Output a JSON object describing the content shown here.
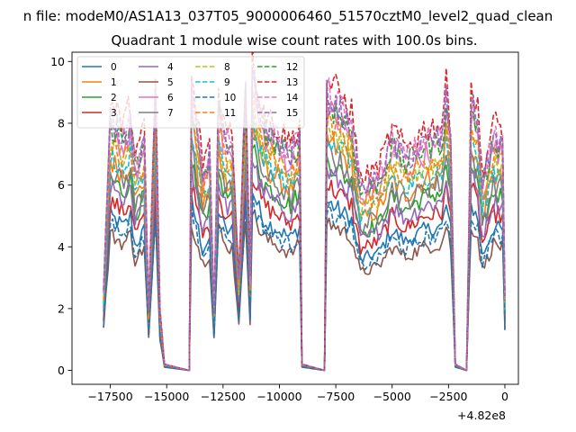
{
  "figure": {
    "suptitle": "n file: modeM0/AS1A13_037T05_9000006460_51570cztM0_level2_quad_clean",
    "offset_label": "+4.82e8"
  },
  "chart_data": {
    "type": "line",
    "title": "Quadrant 1 module wise count rates with 100.0s bins.",
    "xlabel": "",
    "ylabel": "",
    "x_offset": 482000000,
    "xlim": [
      -19200,
      600
    ],
    "ylim": [
      -0.45,
      10.3
    ],
    "xticks": [
      -17500,
      -15000,
      -12500,
      -10000,
      -7500,
      -5000,
      -2500,
      0
    ],
    "xtick_labels": [
      "−17500",
      "−15000",
      "−12500",
      "−10000",
      "−7500",
      "−5000",
      "−2500",
      "0"
    ],
    "yticks": [
      0,
      2,
      4,
      6,
      8,
      10
    ],
    "ytick_labels": [
      "0",
      "2",
      "4",
      "6",
      "8",
      "10"
    ],
    "grid": false,
    "legend": {
      "position": "top-left",
      "ncol": 4
    },
    "x_step": 100,
    "envelope_points": [
      [
        -17800,
        1.3
      ],
      [
        -17500,
        4.2
      ],
      [
        -16900,
        3.9
      ],
      [
        -16600,
        4.2
      ],
      [
        -16400,
        3.4
      ],
      [
        -16000,
        3.8
      ],
      [
        -15800,
        1.0
      ],
      [
        -15500,
        4.6
      ],
      [
        -15300,
        1.0
      ],
      [
        -15100,
        0.1
      ],
      [
        -14000,
        0.0
      ],
      [
        -13900,
        4.6
      ],
      [
        -13400,
        3.3
      ],
      [
        -13100,
        3.6
      ],
      [
        -12900,
        1.0
      ],
      [
        -12700,
        4.4
      ],
      [
        -12400,
        3.8
      ],
      [
        -12100,
        3.8
      ],
      [
        -11800,
        1.5
      ],
      [
        -11500,
        4.7
      ],
      [
        -11300,
        1.5
      ],
      [
        -11200,
        4.9
      ],
      [
        -10800,
        4.2
      ],
      [
        -10500,
        4.0
      ],
      [
        -9500,
        3.6
      ],
      [
        -9100,
        3.9
      ],
      [
        -9000,
        0.1
      ],
      [
        -8000,
        0.0
      ],
      [
        -7900,
        4.6
      ],
      [
        -6800,
        4.1
      ],
      [
        -6400,
        3.0
      ],
      [
        -5600,
        3.2
      ],
      [
        -5000,
        3.8
      ],
      [
        -4400,
        3.5
      ],
      [
        -3600,
        3.8
      ],
      [
        -2800,
        3.9
      ],
      [
        -2600,
        4.5
      ],
      [
        -2400,
        3.8
      ],
      [
        -2200,
        0.1
      ],
      [
        -1700,
        0.0
      ],
      [
        -1500,
        4.5
      ],
      [
        -1200,
        4.1
      ],
      [
        -1000,
        3.1
      ],
      [
        -500,
        3.9
      ],
      [
        -100,
        3.8
      ],
      [
        0,
        1.2
      ]
    ],
    "series": [
      {
        "name": "0",
        "scale": 1.19,
        "color": "#1f77b4",
        "dashed": false
      },
      {
        "name": "1",
        "scale": 1.62,
        "color": "#ff7f0e",
        "dashed": false
      },
      {
        "name": "2",
        "scale": 1.48,
        "color": "#2ca02c",
        "dashed": false
      },
      {
        "name": "3",
        "scale": 1.31,
        "color": "#d62728",
        "dashed": false
      },
      {
        "name": "4",
        "scale": 1.4,
        "color": "#9467bd",
        "dashed": false
      },
      {
        "name": "5",
        "scale": 1.05,
        "color": "#8c564b",
        "dashed": false
      },
      {
        "name": "6",
        "scale": 1.84,
        "color": "#e377c2",
        "dashed": false
      },
      {
        "name": "7",
        "scale": 1.55,
        "color": "#7f7f7f",
        "dashed": false
      },
      {
        "name": "8",
        "scale": 1.73,
        "color": "#bcbd22",
        "dashed": true
      },
      {
        "name": "9",
        "scale": 1.66,
        "color": "#17becf",
        "dashed": true
      },
      {
        "name": "10",
        "scale": 1.12,
        "color": "#1f77b4",
        "dashed": true
      },
      {
        "name": "11",
        "scale": 1.77,
        "color": "#ff7f0e",
        "dashed": true
      },
      {
        "name": "12",
        "scale": 1.9,
        "color": "#2ca02c",
        "dashed": true
      },
      {
        "name": "13",
        "scale": 2.05,
        "color": "#d62728",
        "dashed": true
      },
      {
        "name": "14",
        "scale": 1.96,
        "color": "#e377c2",
        "dashed": true
      },
      {
        "name": "15",
        "scale": 1.93,
        "color": "#9467bd",
        "dashed": true
      }
    ]
  }
}
